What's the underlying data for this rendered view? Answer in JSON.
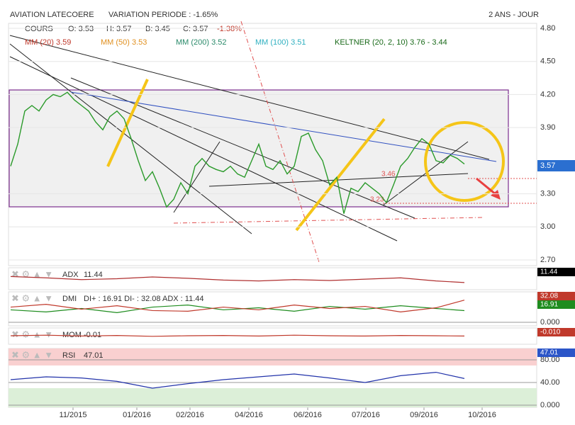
{
  "chart_data": [
    {
      "type": "line",
      "title": "AVIATION LATECOERE",
      "subtitle": "VARIATION PERIODE : -1.65%",
      "period": "2 ANS - JOUR",
      "quote": [
        "COURS",
        "O: 3.53",
        "H: 3.57",
        "B: 3.45",
        "C: 3.57",
        "-1.38%"
      ],
      "indicators": [
        "MM (20) 3.59",
        "MM (50) 3.53",
        "MM (200) 3.52",
        "MM (100) 3.51",
        "KELTNER (20, 2, 10) 3.76 - 3.44"
      ],
      "annotations": [
        "3.46",
        "3.23"
      ],
      "tag": "3.57",
      "series": [
        {
          "name": "COURS",
          "color": "#2a9a2a",
          "values": [
            3.55,
            3.75,
            4.05,
            4.1,
            4.05,
            4.15,
            4.2,
            4.18,
            4.22,
            4.15,
            4.1,
            4.05,
            3.95,
            3.88,
            4.0,
            4.05,
            3.98,
            3.8,
            3.6,
            3.42,
            3.5,
            3.35,
            3.18,
            3.25,
            3.4,
            3.3,
            3.55,
            3.62,
            3.55,
            3.52,
            3.5,
            3.55,
            3.48,
            3.45,
            3.6,
            3.75,
            3.55,
            3.52,
            3.6,
            3.48,
            3.55,
            3.82,
            3.85,
            3.7,
            3.6,
            3.38,
            3.45,
            3.12,
            3.35,
            3.32,
            3.4,
            3.35,
            3.3,
            3.22,
            3.38,
            3.55,
            3.62,
            3.72,
            3.8,
            3.75,
            3.6,
            3.58,
            3.65,
            3.62,
            3.57
          ]
        }
      ],
      "xlim": [
        0,
        74.2
      ],
      "xticks": [
        {
          "value": 8.8,
          "label": "11/2015"
        },
        {
          "value": 17.8,
          "label": "01/2016"
        },
        {
          "value": 25.3,
          "label": "02/2016"
        },
        {
          "value": 33.6,
          "label": "04/2016"
        },
        {
          "value": 41.9,
          "label": "06/2016"
        },
        {
          "value": 50.1,
          "label": "07/2016"
        },
        {
          "value": 58.3,
          "label": "09/2016"
        },
        {
          "value": 66.5,
          "label": "10/2016"
        }
      ],
      "ylim": [
        2.7,
        4.8
      ],
      "yticks": [
        {
          "value": 4.8,
          "label": "4.80"
        },
        {
          "value": 4.5,
          "label": "4.50"
        },
        {
          "value": 4.2,
          "label": "4.20"
        },
        {
          "value": 3.9,
          "label": "3.90"
        },
        {
          "value": 3.3,
          "label": "3.30"
        },
        {
          "value": 3.0,
          "label": "3.00"
        },
        {
          "value": 2.7,
          "label": "2.70"
        }
      ]
    },
    {
      "type": "line",
      "title": "ADX",
      "subtitle": "11.44",
      "tags": [
        "11.44"
      ],
      "tag_colors": [
        "#000000"
      ],
      "x": [
        0,
        5,
        10,
        15,
        20,
        25,
        30,
        35,
        40,
        45,
        50,
        55,
        60,
        64
      ],
      "ylim": [
        0,
        40
      ],
      "series": [
        {
          "name": "ADX",
          "color": "#b03030",
          "values": [
            25,
            22,
            18,
            20,
            24,
            21,
            17,
            15,
            18,
            16,
            19,
            22,
            15,
            11.44
          ]
        }
      ]
    },
    {
      "type": "line",
      "title": "DMI",
      "subtitle": "DI+ : 16.91  DI- : 32.08  ADX : 11.44",
      "tags": [
        "32.08",
        "16.91"
      ],
      "tag_colors": [
        "#c0392b",
        "#1e8c1e"
      ],
      "x": [
        0,
        5,
        10,
        15,
        20,
        25,
        30,
        35,
        40,
        45,
        50,
        55,
        60,
        64
      ],
      "ylim": [
        0,
        40
      ],
      "yticks": [
        {
          "value": 0,
          "label": "0.000"
        }
      ],
      "series": [
        {
          "name": "DI+",
          "color": "#1e8c1e",
          "values": [
            18,
            15,
            20,
            14,
            22,
            25,
            18,
            21,
            16,
            23,
            19,
            24,
            20,
            16.91
          ]
        },
        {
          "name": "DI-",
          "color": "#c0392b",
          "values": [
            22,
            26,
            19,
            24,
            17,
            16,
            22,
            18,
            25,
            20,
            23,
            15,
            21,
            32.08
          ]
        }
      ]
    },
    {
      "type": "line",
      "title": "MOM",
      "subtitle": "-0.01",
      "tags": [
        "-0.010"
      ],
      "tag_colors": [
        "#c0392b"
      ],
      "x": [
        0,
        5,
        10,
        15,
        20,
        25,
        30,
        35,
        40,
        45,
        50,
        55,
        60,
        64
      ],
      "ylim": [
        -0.2,
        0.2
      ],
      "series": [
        {
          "name": "MOM",
          "color": "#c0392b",
          "values": [
            0,
            0.02,
            -0.01,
            0.01,
            -0.02,
            0,
            0.01,
            -0.01,
            0.02,
            0,
            -0.01,
            0.01,
            0,
            -0.01
          ]
        }
      ]
    },
    {
      "type": "line",
      "title": "RSI",
      "subtitle": "47.01",
      "tags": [
        "47.01"
      ],
      "tag_colors": [
        "#2b55c8"
      ],
      "x": [
        0,
        5,
        10,
        15,
        20,
        25,
        30,
        35,
        40,
        45,
        50,
        55,
        60,
        64
      ],
      "ylim": [
        0,
        100
      ],
      "overbought": 70,
      "oversold": 30,
      "yticks": [
        {
          "value": 80,
          "label": "80.00"
        },
        {
          "value": 40,
          "label": "40.00"
        },
        {
          "value": 0,
          "label": "0.000"
        }
      ],
      "series": [
        {
          "name": "RSI",
          "color": "#2233aa",
          "values": [
            45,
            50,
            48,
            42,
            30,
            38,
            45,
            50,
            55,
            48,
            40,
            52,
            58,
            47.01
          ]
        }
      ]
    }
  ]
}
